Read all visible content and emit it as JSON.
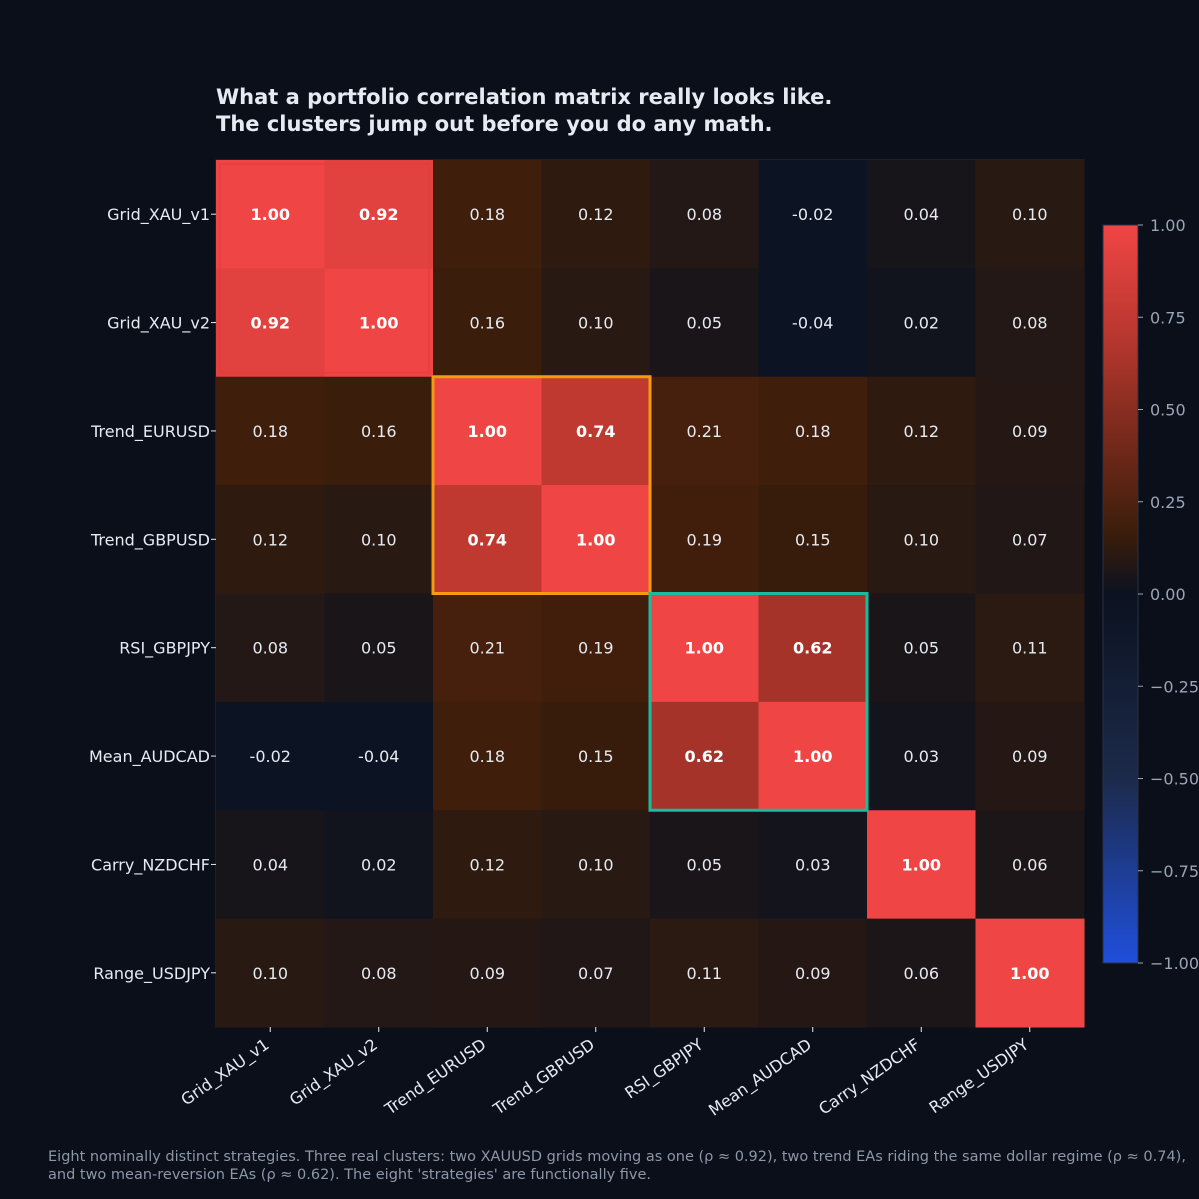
{
  "chart_data": {
    "type": "heatmap",
    "title": [
      "What a portfolio correlation matrix really looks like.",
      "The clusters jump out before you do any math."
    ],
    "labels": [
      "Grid_XAU_v1",
      "Grid_XAU_v2",
      "Trend_EURUSD",
      "Trend_GBPUSD",
      "RSI_GBPJPY",
      "Mean_AUDCAD",
      "Carry_NZDCHF",
      "Range_USDJPY"
    ],
    "values": [
      [
        1.0,
        0.92,
        0.18,
        0.12,
        0.08,
        -0.02,
        0.04,
        0.1
      ],
      [
        0.92,
        1.0,
        0.16,
        0.1,
        0.05,
        -0.04,
        0.02,
        0.08
      ],
      [
        0.18,
        0.16,
        1.0,
        0.74,
        0.21,
        0.18,
        0.12,
        0.09
      ],
      [
        0.12,
        0.1,
        0.74,
        1.0,
        0.19,
        0.15,
        0.1,
        0.07
      ],
      [
        0.08,
        0.05,
        0.21,
        0.19,
        1.0,
        0.62,
        0.05,
        0.11
      ],
      [
        -0.02,
        -0.04,
        0.18,
        0.15,
        0.62,
        1.0,
        0.03,
        0.09
      ],
      [
        0.04,
        0.02,
        0.12,
        0.1,
        0.05,
        0.03,
        1.0,
        0.06
      ],
      [
        0.1,
        0.08,
        0.09,
        0.07,
        0.11,
        0.09,
        0.06,
        1.0
      ]
    ],
    "vmin": -1.0,
    "vmax": 1.0,
    "colorbar_ticks": [
      "1.00",
      "0.75",
      "0.50",
      "0.25",
      "0.00",
      "−0.25",
      "−0.50",
      "−0.75",
      "−1.00"
    ],
    "colorbar_tick_values": [
      1.0,
      0.75,
      0.5,
      0.25,
      0.0,
      -0.25,
      -0.5,
      -0.75,
      -1.0
    ],
    "colormap": [
      "#1f4fdc",
      "#1c2a4a",
      "#0b1220",
      "#3a1d0a",
      "#b8372e",
      "#f04545"
    ],
    "highlights": [
      {
        "rows": [
          0,
          1
        ],
        "cols": [
          0,
          1
        ],
        "color": "#e23c3c"
      },
      {
        "rows": [
          2,
          3
        ],
        "cols": [
          2,
          3
        ],
        "color": "#f39c12"
      },
      {
        "rows": [
          4,
          5
        ],
        "cols": [
          4,
          5
        ],
        "color": "#1abc9c"
      }
    ]
  },
  "caption": "Eight nominally distinct strategies. Three real clusters: two XAUUSD grids moving as one (ρ ≈ 0.92), two trend EAs riding the same dollar regime (ρ ≈ 0.74), and two mean-reversion EAs (ρ ≈ 0.62). The eight 'strategies' are functionally five."
}
